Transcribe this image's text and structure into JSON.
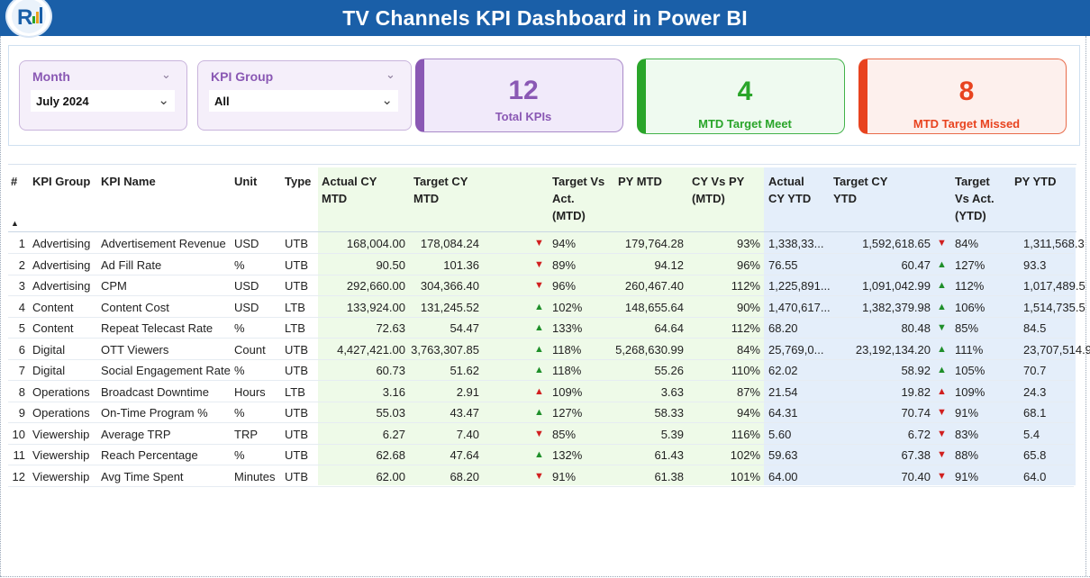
{
  "header": {
    "title": "TV Channels KPI Dashboard in Power BI"
  },
  "filters": {
    "month": {
      "label": "Month",
      "value": "July 2024"
    },
    "kpi_group": {
      "label": "KPI Group",
      "value": "All"
    }
  },
  "cards": {
    "total": {
      "value": "12",
      "label": "Total KPIs"
    },
    "meet": {
      "value": "4",
      "label": "MTD Target Meet"
    },
    "missed": {
      "value": "8",
      "label": "MTD Target Missed"
    }
  },
  "table": {
    "columns": {
      "num": "#",
      "group": "KPI Group",
      "name": "KPI Name",
      "unit": "Unit",
      "type": "Type",
      "actual_mtd": [
        "Actual CY",
        "MTD"
      ],
      "target_mtd": [
        "Target CY",
        "MTD"
      ],
      "tva_mtd": [
        "Target Vs",
        "Act.",
        "(MTD)"
      ],
      "py_mtd": [
        "PY MTD"
      ],
      "cyvpy_mtd": [
        "CY Vs PY",
        "(MTD)"
      ],
      "actual_ytd": [
        "Actual",
        "CY YTD"
      ],
      "target_ytd": [
        "Target CY",
        "YTD"
      ],
      "tva_ytd": [
        "Target",
        "Vs Act.",
        "(YTD)"
      ],
      "py_ytd": [
        "PY YTD"
      ]
    },
    "rows": [
      {
        "num": "1",
        "group": "Advertising",
        "name": "Advertisement Revenue",
        "unit": "USD",
        "type": "UTB",
        "actual_mtd": "168,004.00",
        "target_mtd": "178,084.24",
        "dir_mtd": "down",
        "tva_mtd": "94%",
        "py_mtd": "179,764.28",
        "cyvpy_mtd": "93%",
        "actual_ytd": "1,338,33...",
        "target_ytd": "1,592,618.65",
        "dir_ytd": "down",
        "tva_ytd": "84%",
        "py_ytd": "1,311,568.3"
      },
      {
        "num": "2",
        "group": "Advertising",
        "name": "Ad Fill Rate",
        "unit": "%",
        "type": "UTB",
        "actual_mtd": "90.50",
        "target_mtd": "101.36",
        "dir_mtd": "down",
        "tva_mtd": "89%",
        "py_mtd": "94.12",
        "cyvpy_mtd": "96%",
        "actual_ytd": "76.55",
        "target_ytd": "60.47",
        "dir_ytd": "up",
        "tva_ytd": "127%",
        "py_ytd": "93.3"
      },
      {
        "num": "3",
        "group": "Advertising",
        "name": "CPM",
        "unit": "USD",
        "type": "UTB",
        "actual_mtd": "292,660.00",
        "target_mtd": "304,366.40",
        "dir_mtd": "down",
        "tva_mtd": "96%",
        "py_mtd": "260,467.40",
        "cyvpy_mtd": "112%",
        "actual_ytd": "1,225,891...",
        "target_ytd": "1,091,042.99",
        "dir_ytd": "up",
        "tva_ytd": "112%",
        "py_ytd": "1,017,489.5"
      },
      {
        "num": "4",
        "group": "Content",
        "name": "Content Cost",
        "unit": "USD",
        "type": "LTB",
        "actual_mtd": "133,924.00",
        "target_mtd": "131,245.52",
        "dir_mtd": "up",
        "tva_mtd": "102%",
        "py_mtd": "148,655.64",
        "cyvpy_mtd": "90%",
        "actual_ytd": "1,470,617...",
        "target_ytd": "1,382,379.98",
        "dir_ytd": "up",
        "tva_ytd": "106%",
        "py_ytd": "1,514,735.5"
      },
      {
        "num": "5",
        "group": "Content",
        "name": "Repeat Telecast Rate",
        "unit": "%",
        "type": "LTB",
        "actual_mtd": "72.63",
        "target_mtd": "54.47",
        "dir_mtd": "up",
        "tva_mtd": "133%",
        "py_mtd": "64.64",
        "cyvpy_mtd": "112%",
        "actual_ytd": "68.20",
        "target_ytd": "80.48",
        "dir_ytd": "downg",
        "tva_ytd": "85%",
        "py_ytd": "84.5"
      },
      {
        "num": "6",
        "group": "Digital",
        "name": "OTT Viewers",
        "unit": "Count",
        "type": "UTB",
        "actual_mtd": "4,427,421.00",
        "target_mtd": "3,763,307.85",
        "dir_mtd": "up",
        "tva_mtd": "118%",
        "py_mtd": "5,268,630.99",
        "cyvpy_mtd": "84%",
        "actual_ytd": "25,769,0...",
        "target_ytd": "23,192,134.20",
        "dir_ytd": "up",
        "tva_ytd": "111%",
        "py_ytd": "23,707,514.9"
      },
      {
        "num": "7",
        "group": "Digital",
        "name": "Social Engagement Rate",
        "unit": "%",
        "type": "UTB",
        "actual_mtd": "60.73",
        "target_mtd": "51.62",
        "dir_mtd": "up",
        "tva_mtd": "118%",
        "py_mtd": "55.26",
        "cyvpy_mtd": "110%",
        "actual_ytd": "62.02",
        "target_ytd": "58.92",
        "dir_ytd": "up",
        "tva_ytd": "105%",
        "py_ytd": "70.7"
      },
      {
        "num": "8",
        "group": "Operations",
        "name": "Broadcast Downtime",
        "unit": "Hours",
        "type": "LTB",
        "actual_mtd": "3.16",
        "target_mtd": "2.91",
        "dir_mtd": "upr",
        "tva_mtd": "109%",
        "py_mtd": "3.63",
        "cyvpy_mtd": "87%",
        "actual_ytd": "21.54",
        "target_ytd": "19.82",
        "dir_ytd": "upr",
        "tva_ytd": "109%",
        "py_ytd": "24.3"
      },
      {
        "num": "9",
        "group": "Operations",
        "name": "On-Time Program %",
        "unit": "%",
        "type": "UTB",
        "actual_mtd": "55.03",
        "target_mtd": "43.47",
        "dir_mtd": "up",
        "tva_mtd": "127%",
        "py_mtd": "58.33",
        "cyvpy_mtd": "94%",
        "actual_ytd": "64.31",
        "target_ytd": "70.74",
        "dir_ytd": "down",
        "tva_ytd": "91%",
        "py_ytd": "68.1"
      },
      {
        "num": "10",
        "group": "Viewership",
        "name": "Average TRP",
        "unit": "TRP",
        "type": "UTB",
        "actual_mtd": "6.27",
        "target_mtd": "7.40",
        "dir_mtd": "down",
        "tva_mtd": "85%",
        "py_mtd": "5.39",
        "cyvpy_mtd": "116%",
        "actual_ytd": "5.60",
        "target_ytd": "6.72",
        "dir_ytd": "down",
        "tva_ytd": "83%",
        "py_ytd": "5.4"
      },
      {
        "num": "11",
        "group": "Viewership",
        "name": "Reach Percentage",
        "unit": "%",
        "type": "UTB",
        "actual_mtd": "62.68",
        "target_mtd": "47.64",
        "dir_mtd": "up",
        "tva_mtd": "132%",
        "py_mtd": "61.43",
        "cyvpy_mtd": "102%",
        "actual_ytd": "59.63",
        "target_ytd": "67.38",
        "dir_ytd": "down",
        "tva_ytd": "88%",
        "py_ytd": "65.8"
      },
      {
        "num": "12",
        "group": "Viewership",
        "name": "Avg Time Spent",
        "unit": "Minutes",
        "type": "UTB",
        "actual_mtd": "62.00",
        "target_mtd": "68.20",
        "dir_mtd": "down",
        "tva_mtd": "91%",
        "py_mtd": "61.38",
        "cyvpy_mtd": "101%",
        "actual_ytd": "64.00",
        "target_ytd": "70.40",
        "dir_ytd": "down",
        "tva_ytd": "91%",
        "py_ytd": "64.0"
      }
    ]
  },
  "colors": {
    "header": "#1a5fa8",
    "up": "#1f8f2a",
    "down": "#d11f1f",
    "purple": "#8a58b4",
    "green": "#2aa52a",
    "red": "#e8431f"
  }
}
